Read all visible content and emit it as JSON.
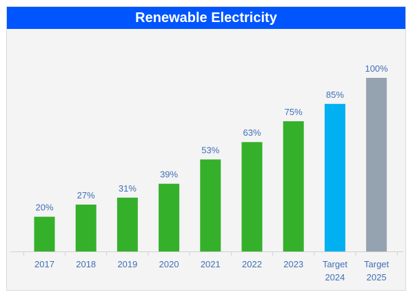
{
  "chart_data": {
    "type": "bar",
    "title": "Renewable Electricity",
    "categories": [
      [
        "2017"
      ],
      [
        "2018"
      ],
      [
        "2019"
      ],
      [
        "2020"
      ],
      [
        "2021"
      ],
      [
        "2022"
      ],
      [
        "2023"
      ],
      [
        "Target",
        "2024"
      ],
      [
        "Target",
        "2025"
      ]
    ],
    "values": [
      20,
      27,
      31,
      39,
      53,
      63,
      75,
      85,
      100
    ],
    "data_labels": [
      "20%",
      "27%",
      "31%",
      "39%",
      "53%",
      "63%",
      "75%",
      "85%",
      "100%"
    ],
    "bar_colors": [
      "#35b02a",
      "#35b02a",
      "#35b02a",
      "#35b02a",
      "#35b02a",
      "#35b02a",
      "#35b02a",
      "#00b0f0",
      "#95a3b0"
    ],
    "ylim": [
      0,
      100
    ],
    "xlabel": "",
    "ylabel": "",
    "grid": false,
    "legend": "none"
  },
  "colors": {
    "title_bg": "#0055ff",
    "title_text": "#ffffff",
    "label_text": "#3f6fb6",
    "axis_line": "#d0d0d0"
  }
}
